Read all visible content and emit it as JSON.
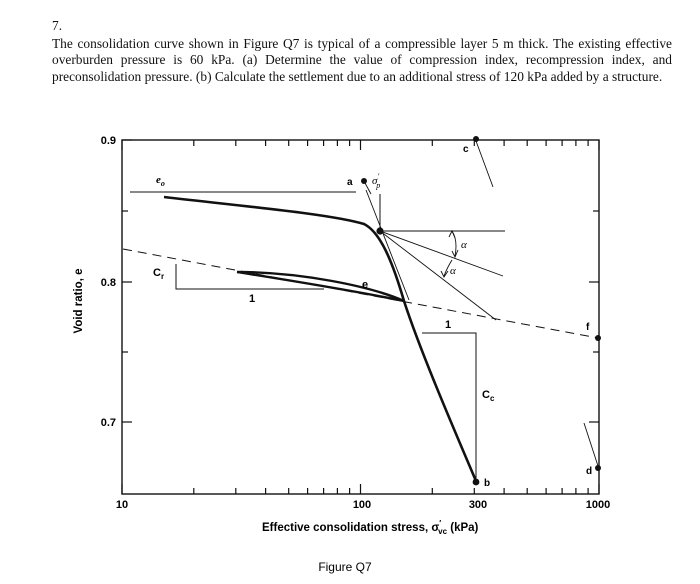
{
  "problem": {
    "number": "7.",
    "text": "The consolidation curve shown in Figure Q7 is typical of a compressible layer 5 m thick. The existing effective overburden pressure is 60 kPa. (a) Determine the value of compression index, recompression index, and preconsolidation pressure. (b) Calculate the settlement due to an additional stress of 120 kPa added by a structure."
  },
  "figure": {
    "caption": "Figure Q7",
    "ylabel": "Void ratio, e",
    "xlabel_main": "Effective consolidation stress, σ",
    "xlabel_prime": "′",
    "xlabel_sub": "vc",
    "xlabel_unit": " (kPa)",
    "y_ticks": [
      "0.9",
      "0.8",
      "0.7"
    ],
    "x_ticks": [
      "10",
      "100",
      "300",
      "1000"
    ],
    "labels": {
      "e0": "e",
      "e0_sub": "o",
      "a": "a",
      "sigma_p": "σ",
      "sigma_p_prime": "′",
      "sigma_p_sub": "p",
      "c": "c",
      "alpha1": "α",
      "alpha2": "α",
      "e": "e",
      "cr": "C",
      "cr_sub": "r",
      "one_r": "1",
      "one_c": "1",
      "cc": "C",
      "cc_sub": "c",
      "b": "b",
      "d": "d",
      "f": "f"
    }
  },
  "chart_data": {
    "type": "line",
    "x_scale": "log",
    "xlim": [
      10,
      1000
    ],
    "ylim": [
      0.65,
      0.9
    ],
    "xlabel": "Effective consolidation stress, σ′vc (kPa)",
    "ylabel": "Void ratio, e",
    "x_tick_labels": [
      "10",
      "100",
      "300",
      "1000"
    ],
    "y_tick_labels": [
      "0.9",
      "0.8",
      "0.7"
    ],
    "series": [
      {
        "name": "",
        "x": [
          15,
          30,
          60,
          90,
          115,
          145,
          300
        ],
        "y": [
          0.862,
          0.856,
          0.847,
          0.84,
          0.833,
          0.788,
          0.655
        ]
      }
    ]
  }
}
